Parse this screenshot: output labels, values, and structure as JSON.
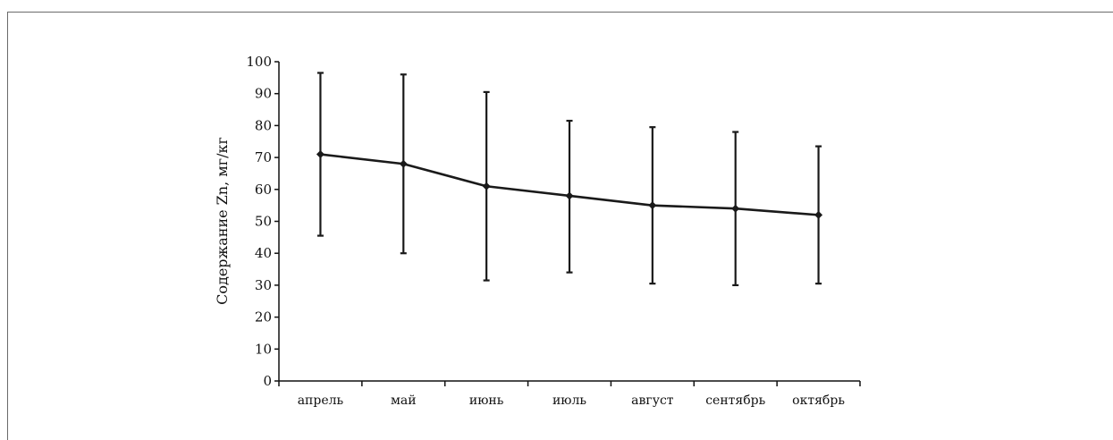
{
  "chart_data": {
    "type": "line",
    "ylabel": "Содержание Zn, мг/кг",
    "xlabel": "",
    "categories": [
      "апрель",
      "май",
      "июнь",
      "июль",
      "август",
      "сентябрь",
      "октябрь"
    ],
    "ylim": [
      0,
      100
    ],
    "yticks": [
      0,
      10,
      20,
      30,
      40,
      50,
      60,
      70,
      80,
      90,
      100
    ],
    "grid": false,
    "series": [
      {
        "values": [
          71,
          68,
          61,
          58,
          55,
          54,
          52
        ],
        "upper": [
          96.5,
          96,
          90.5,
          81.5,
          79.5,
          78,
          73.5
        ],
        "lower": [
          45.5,
          40,
          31.5,
          34,
          30.5,
          30,
          30.5
        ],
        "color": "#1a1a1a"
      }
    ]
  }
}
